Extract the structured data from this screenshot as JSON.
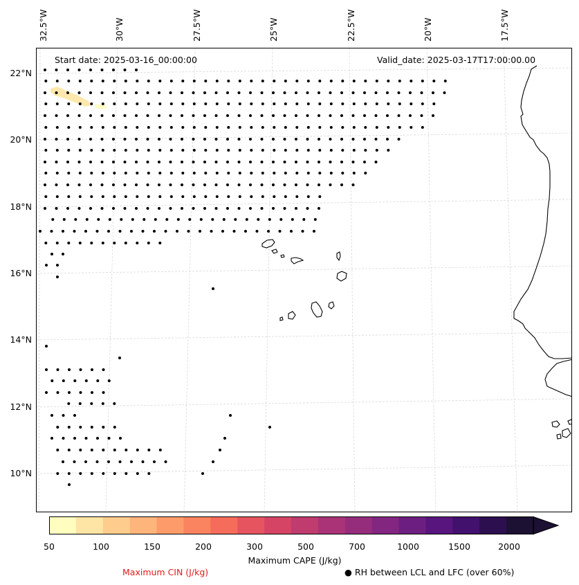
{
  "header": {
    "start_date": "Start date: 2025-03-16_00:00:00",
    "valid_date": "Valid_date: 2025-03-17T17:00:00.00"
  },
  "axes": {
    "lon_labels": [
      "32.5°W",
      "30°W",
      "27.5°W",
      "25°W",
      "22.5°W",
      "20°W",
      "17.5°W"
    ],
    "lat_labels": [
      "22°N",
      "20°N",
      "18°N",
      "16°N",
      "14°N",
      "12°N",
      "10°N"
    ]
  },
  "colorbar": {
    "label": "Maximum CAPE (J/kg)",
    "tick_labels": [
      "50",
      "100",
      "150",
      "200",
      "300",
      "500",
      "700",
      "1000",
      "1500",
      "2000"
    ],
    "colors": [
      "#fffdbf",
      "#fee5a5",
      "#fecd8e",
      "#feb57c",
      "#fd9c6a",
      "#fa845f",
      "#f56c5b",
      "#e6545f",
      "#d54464",
      "#c03b6e",
      "#aa3377",
      "#962d7c",
      "#822681",
      "#6d1f81",
      "#58157e",
      "#42106d",
      "#2c0f4f",
      "#1c1033"
    ],
    "extend": "max"
  },
  "legend": {
    "cin_label": "Maximum CIN (J/kg)",
    "cin_color": "#e41a1c",
    "rh_label": "● RH between LCL and LFC (over 60%)"
  },
  "map": {
    "coastline_color": "#000000",
    "gridline_color": "#d9d9d9",
    "marker_color": "#000000",
    "cape_patch_colors": [
      "#fee5a5",
      "#fffdbf"
    ]
  }
}
